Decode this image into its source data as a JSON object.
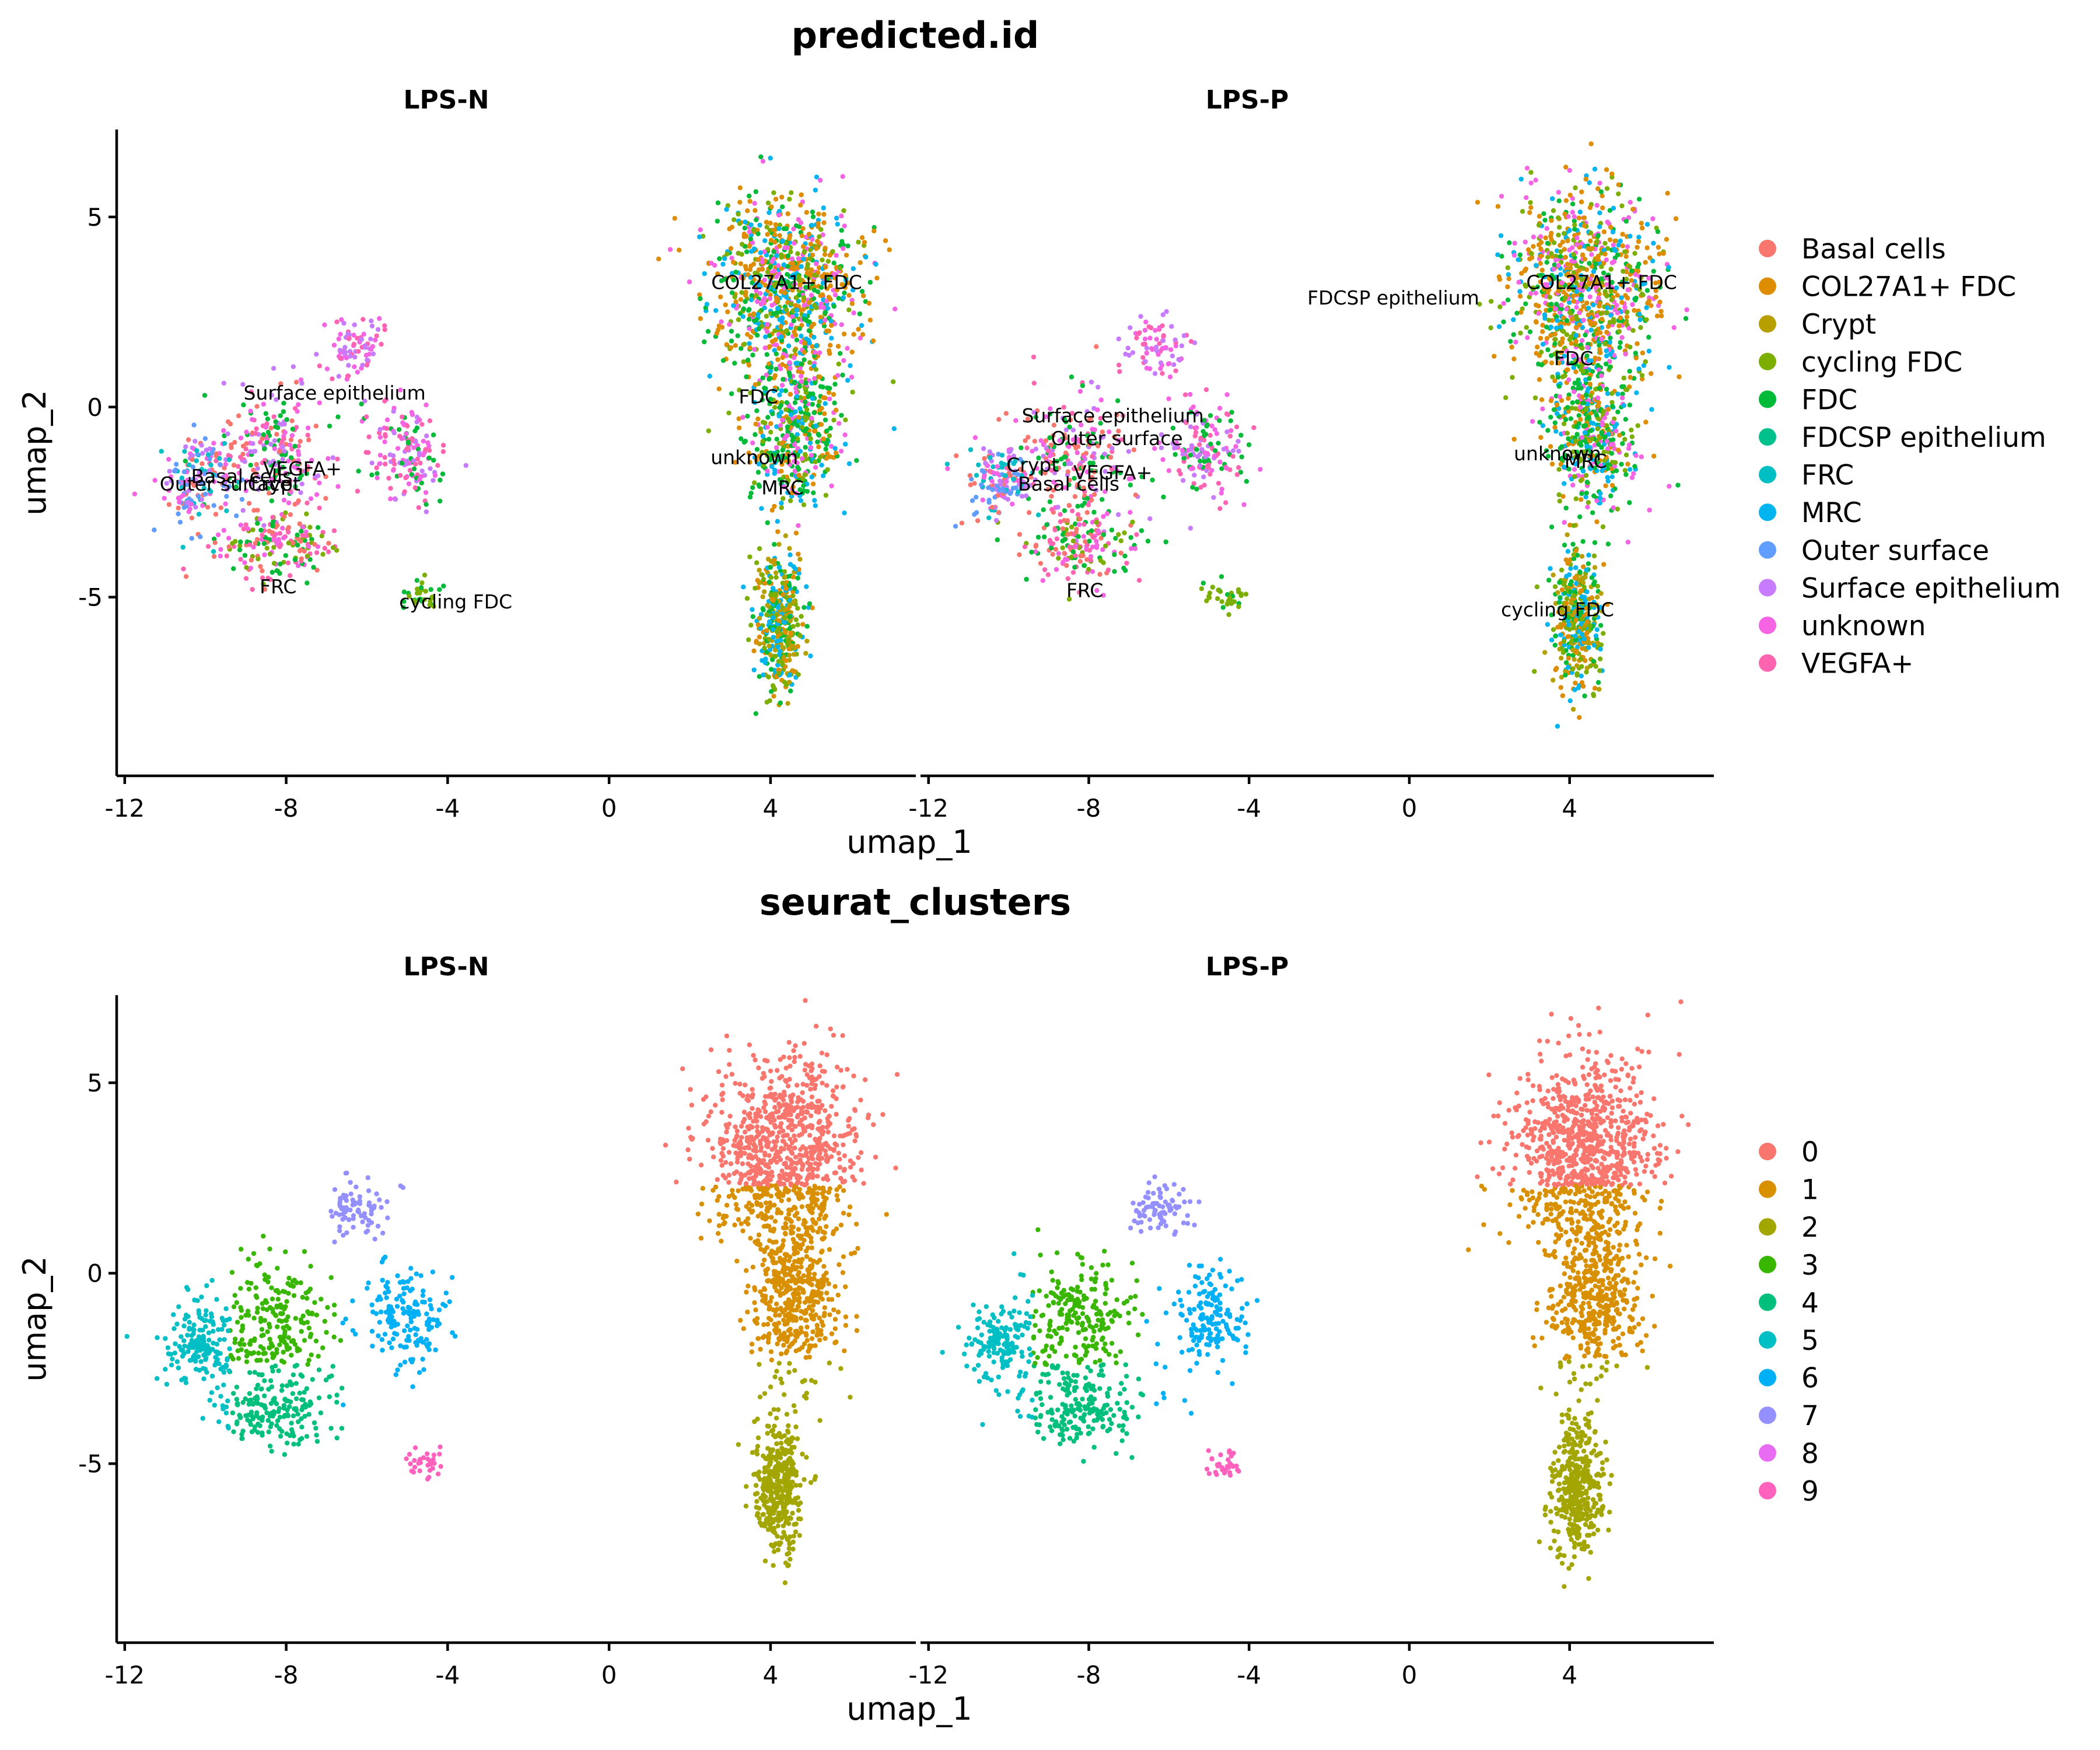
{
  "chart_data": [
    {
      "type": "scatter",
      "title": "predicted.id",
      "xlabel": "umap_1",
      "ylabel": "umap_2",
      "xlim": [
        -12.2,
        7.6
      ],
      "ylim": [
        -9.7,
        7.3
      ],
      "xticks": [
        -12,
        -8,
        -4,
        0,
        4
      ],
      "xtick_labels": [
        "-12",
        "-8",
        "-4",
        "0",
        "4"
      ],
      "yticks": [
        -5,
        0,
        5
      ],
      "ytick_labels": [
        "-5",
        "0",
        "5"
      ],
      "grid": false,
      "legend_position": "right",
      "legend": [
        {
          "label": "Basal cells",
          "color": "#F8766D"
        },
        {
          "label": "COL27A1+ FDC",
          "color": "#DE8C00"
        },
        {
          "label": "Crypt",
          "color": "#B79F00"
        },
        {
          "label": "cycling FDC",
          "color": "#7CAE00"
        },
        {
          "label": "FDC",
          "color": "#00BA38"
        },
        {
          "label": "FDCSP epithelium",
          "color": "#00C08B"
        },
        {
          "label": "FRC",
          "color": "#00BFC4"
        },
        {
          "label": "MRC",
          "color": "#00B4F0"
        },
        {
          "label": "Outer surface",
          "color": "#619CFF"
        },
        {
          "label": "Surface epithelium",
          "color": "#C77CFF"
        },
        {
          "label": "unknown",
          "color": "#F564E3"
        },
        {
          "label": "VEGFA+",
          "color": "#FF64B0"
        }
      ],
      "panels": [
        {
          "name": "LPS-N",
          "cluster_labels": [
            {
              "text": "COL27A1+ FDC",
              "x": 4.4,
              "y": 3.1
            },
            {
              "text": "Surface epithelium",
              "x": -6.8,
              "y": 0.2
            },
            {
              "text": "FDC",
              "x": 3.7,
              "y": 0.1
            },
            {
              "text": "unknown",
              "x": 3.6,
              "y": -1.5
            },
            {
              "text": "Basal cells",
              "x": -9.1,
              "y": -2.0
            },
            {
              "text": "VEGFA+",
              "x": -7.6,
              "y": -1.8
            },
            {
              "text": "Outer surface",
              "x": -9.5,
              "y": -2.2
            },
            {
              "text": "Crypt",
              "x": -8.3,
              "y": -2.2
            },
            {
              "text": "MRC",
              "x": 4.3,
              "y": -2.3
            },
            {
              "text": "FRC",
              "x": -8.2,
              "y": -4.9
            },
            {
              "text": "cycling FDC",
              "x": -3.8,
              "y": -5.3
            }
          ]
        },
        {
          "name": "LPS-P",
          "cluster_labels": [
            {
              "text": "FDCSP epithelium",
              "x": -0.4,
              "y": 2.7
            },
            {
              "text": "COL27A1+ FDC",
              "x": 4.8,
              "y": 3.1
            },
            {
              "text": "FDC",
              "x": 4.1,
              "y": 1.1
            },
            {
              "text": "Surface epithelium",
              "x": -7.4,
              "y": -0.4
            },
            {
              "text": "Outer surface",
              "x": -7.3,
              "y": -1.0
            },
            {
              "text": "unknown",
              "x": 3.7,
              "y": -1.4
            },
            {
              "text": "MRC",
              "x": 4.4,
              "y": -1.6
            },
            {
              "text": "Crypt",
              "x": -9.4,
              "y": -1.7
            },
            {
              "text": "VEGFA+",
              "x": -7.4,
              "y": -1.9
            },
            {
              "text": "Basal cells",
              "x": -8.5,
              "y": -2.2
            },
            {
              "text": "FRC",
              "x": -8.1,
              "y": -5.0
            },
            {
              "text": "cycling FDC",
              "x": 3.7,
              "y": -5.5
            }
          ]
        }
      ]
    },
    {
      "type": "scatter",
      "title": "seurat_clusters",
      "xlabel": "umap_1",
      "ylabel": "umap_2",
      "xlim": [
        -12.2,
        7.6
      ],
      "ylim": [
        -9.7,
        7.3
      ],
      "xticks": [
        -12,
        -8,
        -4,
        0,
        4
      ],
      "xtick_labels": [
        "-12",
        "-8",
        "-4",
        "0",
        "4"
      ],
      "yticks": [
        -5,
        0,
        5
      ],
      "ytick_labels": [
        "-5",
        "0",
        "5"
      ],
      "grid": false,
      "legend_position": "right",
      "legend": [
        {
          "label": "0",
          "color": "#F8766D"
        },
        {
          "label": "1",
          "color": "#D89000"
        },
        {
          "label": "2",
          "color": "#A3A500"
        },
        {
          "label": "3",
          "color": "#39B600"
        },
        {
          "label": "4",
          "color": "#00BF7D"
        },
        {
          "label": "5",
          "color": "#00BFC4"
        },
        {
          "label": "6",
          "color": "#00B0F6"
        },
        {
          "label": "7",
          "color": "#9590FF"
        },
        {
          "label": "8",
          "color": "#E76BF3"
        },
        {
          "label": "9",
          "color": "#FF62BC"
        }
      ],
      "panels": [
        {
          "name": "LPS-N",
          "cluster_labels": []
        },
        {
          "name": "LPS-P",
          "cluster_labels": []
        }
      ]
    }
  ]
}
